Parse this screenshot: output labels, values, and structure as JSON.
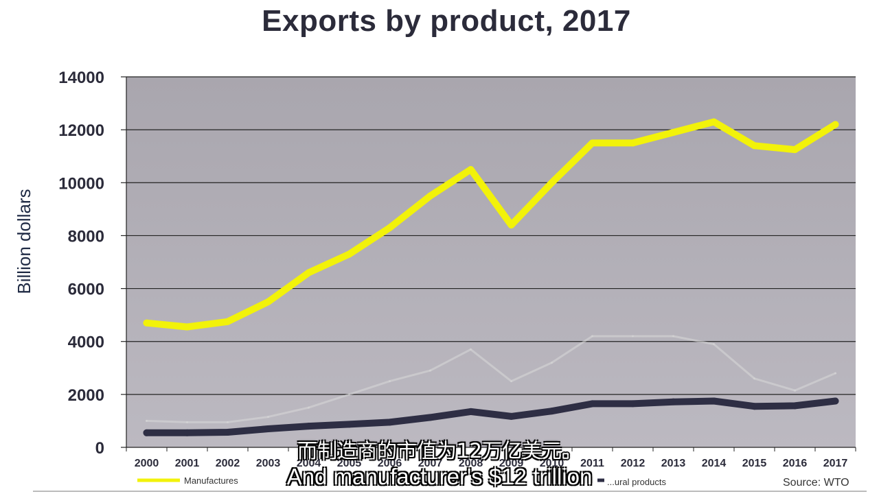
{
  "chart_data": {
    "type": "line",
    "title": "Exports by product, 2017",
    "xlabel": "",
    "ylabel": "Billion dollars",
    "ylim": [
      0,
      14000
    ],
    "yticks": [
      0,
      2000,
      4000,
      6000,
      8000,
      10000,
      12000,
      14000
    ],
    "categories": [
      "2000",
      "2001",
      "2002",
      "2003",
      "2004",
      "2005",
      "2006",
      "2007",
      "2008",
      "2009",
      "2010",
      "2011",
      "2012",
      "2013",
      "2014",
      "2015",
      "2016",
      "2017"
    ],
    "grid": true,
    "legend_position": "bottom",
    "series": [
      {
        "name": "Manufactures",
        "color": "#f2f20a",
        "values": [
          4700,
          4550,
          4750,
          5500,
          6600,
          7300,
          8300,
          9500,
          10500,
          8400,
          10000,
          11500,
          11500,
          11900,
          12300,
          11400,
          11250,
          12200
        ]
      },
      {
        "name": "",
        "color": "#d9d9d9",
        "values": [
          1000,
          950,
          950,
          1150,
          1500,
          2000,
          2500,
          2900,
          3700,
          2500,
          3200,
          4200,
          4200,
          4200,
          3900,
          2600,
          2150,
          2800
        ]
      },
      {
        "name": "",
        "color": "#2e2e44",
        "values": [
          550,
          550,
          570,
          700,
          800,
          870,
          950,
          1130,
          1350,
          1170,
          1370,
          1650,
          1650,
          1720,
          1750,
          1550,
          1570,
          1750
        ]
      }
    ],
    "legend": [
      {
        "label": "Manufactures",
        "color": "#f2f20a"
      },
      {
        "label": "...ural products",
        "color": "#2e2e44"
      }
    ],
    "source": "Source: WTO"
  },
  "subtitles": {
    "chinese": "而制造商的市值为12万亿美元。",
    "english": "And manufacturer's $12 trillion"
  }
}
